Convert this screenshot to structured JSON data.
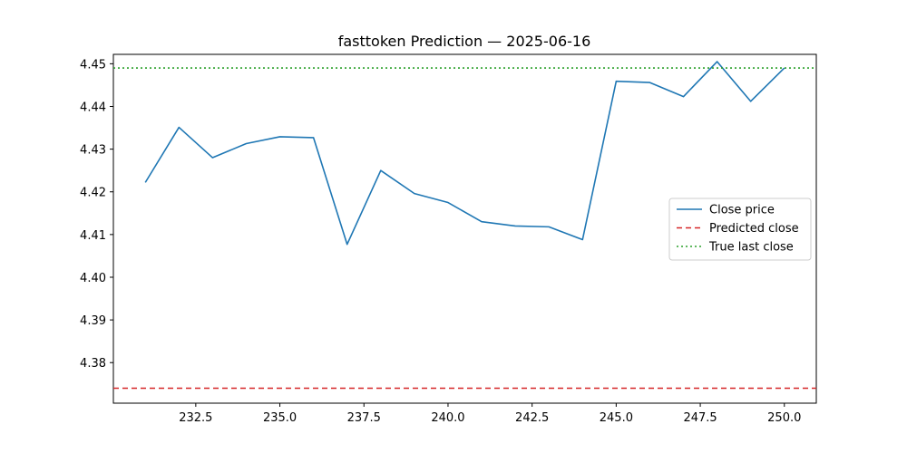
{
  "chart_data": {
    "type": "line",
    "title": "fasttoken Prediction — 2025-06-16",
    "xlabel": "",
    "ylabel": "",
    "xlim": [
      230.05,
      250.95
    ],
    "ylim": [
      4.3705,
      4.4522
    ],
    "x_ticks": [
      232.5,
      235.0,
      237.5,
      240.0,
      242.5,
      245.0,
      247.5,
      250.0
    ],
    "x_tick_labels": [
      "232.5",
      "235.0",
      "237.5",
      "240.0",
      "242.5",
      "245.0",
      "247.5",
      "250.0"
    ],
    "y_ticks": [
      4.38,
      4.39,
      4.4,
      4.41,
      4.42,
      4.43,
      4.44,
      4.45
    ],
    "y_tick_labels": [
      "4.38",
      "4.39",
      "4.40",
      "4.41",
      "4.42",
      "4.43",
      "4.44",
      "4.45"
    ],
    "grid": false,
    "legend_placement": "center-right",
    "series": [
      {
        "name": "Close price",
        "style": "solid",
        "color": "#1f77b4",
        "x": [
          231,
          232,
          233,
          234,
          235,
          236,
          237,
          238,
          239,
          240,
          241,
          242,
          243,
          244,
          245,
          246,
          247,
          248,
          249,
          250
        ],
        "y": [
          4.4222,
          4.4351,
          4.428,
          4.4313,
          4.4329,
          4.4327,
          4.4077,
          4.425,
          4.4196,
          4.4175,
          4.413,
          4.412,
          4.4118,
          4.4088,
          4.4459,
          4.4456,
          4.4423,
          4.4505,
          4.4412,
          4.449
        ]
      },
      {
        "name": "Predicted close",
        "style": "dashed",
        "color": "#d62728",
        "type": "hline",
        "y": 4.374
      },
      {
        "name": "True last close",
        "style": "dotted",
        "color": "#2ca02c",
        "type": "hline",
        "y": 4.449
      }
    ]
  }
}
